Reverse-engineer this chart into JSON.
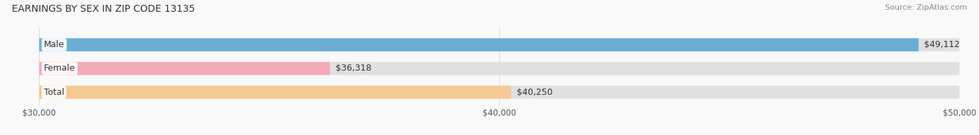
{
  "title": "EARNINGS BY SEX IN ZIP CODE 13135",
  "source": "Source: ZipAtlas.com",
  "categories": [
    "Male",
    "Female",
    "Total"
  ],
  "values": [
    49112,
    36318,
    40250
  ],
  "bar_colors": [
    "#6aaed6",
    "#f4a9b8",
    "#f5c992"
  ],
  "bar_bg_color": "#e0e0e0",
  "value_labels": [
    "$49,112",
    "$36,318",
    "$40,250"
  ],
  "xmin": 30000,
  "xmax": 50000,
  "xticks": [
    30000,
    40000,
    50000
  ],
  "xtick_labels": [
    "$30,000",
    "$40,000",
    "$50,000"
  ],
  "background_color": "#f9f9f9",
  "title_fontsize": 10,
  "source_fontsize": 8,
  "bar_label_fontsize": 9,
  "category_fontsize": 9,
  "tick_fontsize": 8.5
}
